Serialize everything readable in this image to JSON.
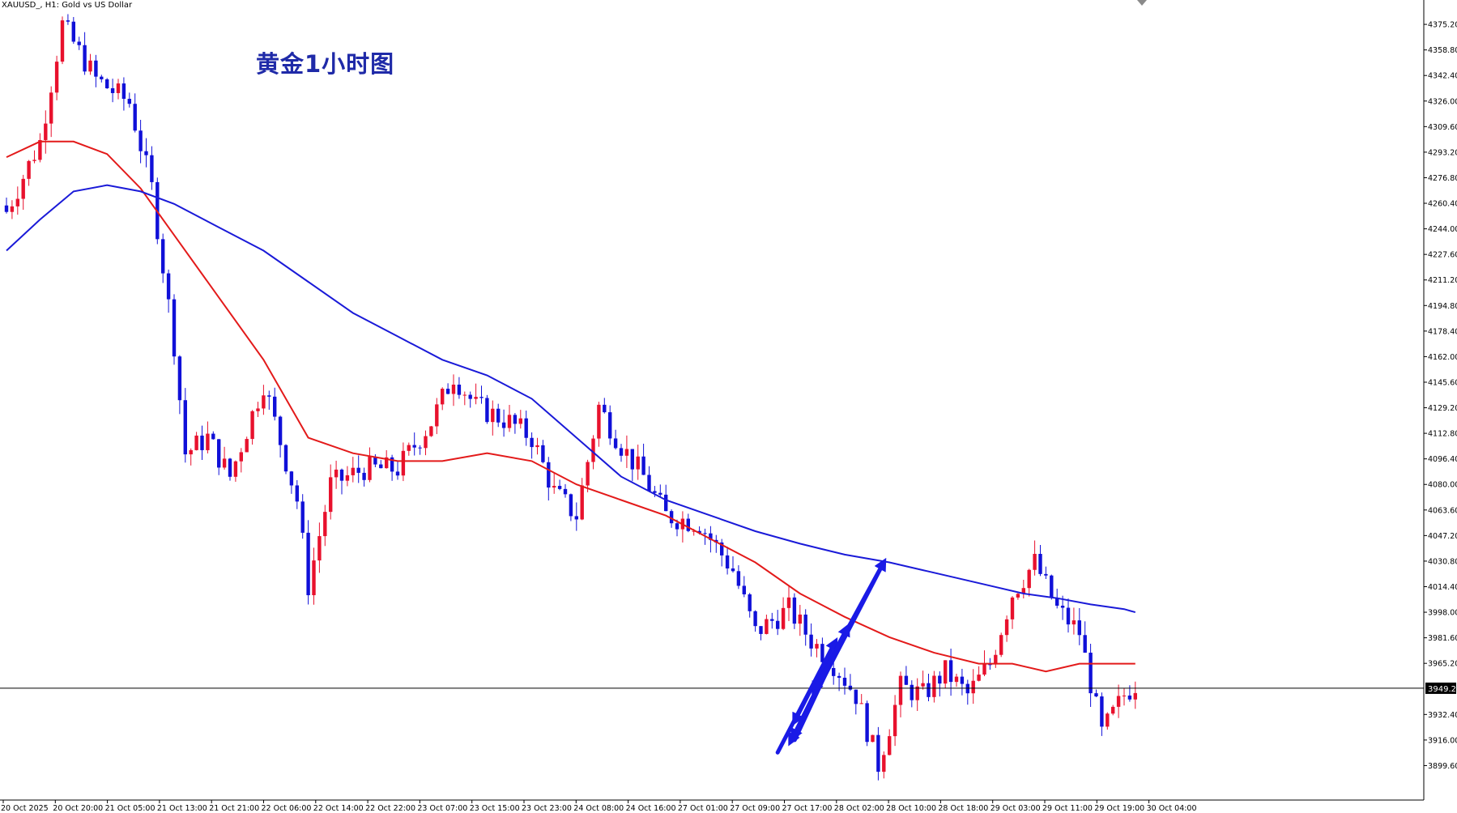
{
  "header": {
    "symbol": "XAUUSD_, H1:",
    "description": "Gold vs US Dollar"
  },
  "annotation": {
    "title": "黄金1小时图"
  },
  "colors": {
    "background": "#ffffff",
    "bull_candle": "#e8112d",
    "bear_candle": "#1010d8",
    "ma_fast": "#e31a1a",
    "ma_slow": "#1a1ad8",
    "annotation_arrows": "#1a1ae6",
    "axis": "#000000"
  },
  "chart_data": {
    "type": "candlestick",
    "title": "黄金1小时图",
    "ylim": [
      3883,
      4392
    ],
    "y_ticks": [
      "4375.20",
      "4358.80",
      "4342.40",
      "4326.00",
      "4309.60",
      "4293.20",
      "4276.80",
      "4260.40",
      "4244.00",
      "4227.60",
      "4211.20",
      "4194.80",
      "4178.40",
      "4162.00",
      "4145.60",
      "4129.20",
      "4112.80",
      "4096.40",
      "4080.00",
      "4063.60",
      "4047.20",
      "4030.80",
      "4014.40",
      "3998.00",
      "3981.60",
      "3965.20",
      "3932.40",
      "3916.00",
      "3899.60"
    ],
    "x_ticks": [
      "20 Oct 2025",
      "20 Oct 20:00",
      "21 Oct 05:00",
      "21 Oct 13:00",
      "21 Oct 21:00",
      "22 Oct 06:00",
      "22 Oct 14:00",
      "22 Oct 22:00",
      "23 Oct 07:00",
      "23 Oct 15:00",
      "23 Oct 23:00",
      "24 Oct 08:00",
      "24 Oct 16:00",
      "27 Oct 01:00",
      "27 Oct 09:00",
      "27 Oct 17:00",
      "28 Oct 02:00",
      "28 Oct 10:00",
      "28 Oct 18:00",
      "29 Oct 03:00",
      "29 Oct 11:00",
      "29 Oct 19:00",
      "30 Oct 04:00"
    ],
    "current_price": "3949.23",
    "close_path": [
      [
        0,
        4255
      ],
      [
        6,
        4300
      ],
      [
        10,
        4375
      ],
      [
        16,
        4340
      ],
      [
        22,
        4325
      ],
      [
        26,
        4270
      ],
      [
        30,
        4170
      ],
      [
        32,
        4100
      ],
      [
        36,
        4110
      ],
      [
        40,
        4085
      ],
      [
        46,
        4145
      ],
      [
        52,
        4070
      ],
      [
        54,
        4015
      ],
      [
        58,
        4080
      ],
      [
        64,
        4090
      ],
      [
        70,
        4090
      ],
      [
        76,
        4120
      ],
      [
        80,
        4150
      ],
      [
        84,
        4130
      ],
      [
        90,
        4120
      ],
      [
        94,
        4110
      ],
      [
        98,
        4075
      ],
      [
        102,
        4060
      ],
      [
        106,
        4130
      ],
      [
        110,
        4105
      ],
      [
        114,
        4085
      ],
      [
        118,
        4060
      ],
      [
        124,
        4055
      ],
      [
        130,
        4025
      ],
      [
        134,
        3985
      ],
      [
        140,
        4000
      ],
      [
        144,
        3980
      ],
      [
        148,
        3965
      ],
      [
        152,
        3945
      ],
      [
        156,
        3900
      ],
      [
        160,
        3950
      ],
      [
        164,
        3945
      ],
      [
        168,
        3960
      ],
      [
        172,
        3945
      ],
      [
        176,
        3965
      ],
      [
        180,
        4010
      ],
      [
        184,
        4030
      ],
      [
        188,
        4000
      ],
      [
        192,
        3985
      ],
      [
        196,
        3920
      ],
      [
        200,
        3945
      ],
      [
        202,
        3952
      ]
    ],
    "series": [
      {
        "name": "",
        "type": "ma_fast",
        "points": [
          [
            0,
            4290
          ],
          [
            6,
            4300
          ],
          [
            12,
            4300
          ],
          [
            18,
            4292
          ],
          [
            24,
            4270
          ],
          [
            30,
            4240
          ],
          [
            38,
            4200
          ],
          [
            46,
            4160
          ],
          [
            54,
            4110
          ],
          [
            62,
            4100
          ],
          [
            70,
            4095
          ],
          [
            78,
            4095
          ],
          [
            86,
            4100
          ],
          [
            94,
            4095
          ],
          [
            102,
            4080
          ],
          [
            110,
            4070
          ],
          [
            118,
            4060
          ],
          [
            126,
            4045
          ],
          [
            134,
            4030
          ],
          [
            142,
            4010
          ],
          [
            150,
            3995
          ],
          [
            158,
            3982
          ],
          [
            166,
            3972
          ],
          [
            174,
            3965
          ],
          [
            180,
            3965
          ],
          [
            186,
            3960
          ],
          [
            192,
            3965
          ],
          [
            198,
            3965
          ],
          [
            202,
            3965
          ]
        ]
      },
      {
        "name": "",
        "type": "ma_slow",
        "points": [
          [
            0,
            4230
          ],
          [
            6,
            4250
          ],
          [
            12,
            4268
          ],
          [
            18,
            4272
          ],
          [
            24,
            4268
          ],
          [
            30,
            4260
          ],
          [
            38,
            4245
          ],
          [
            46,
            4230
          ],
          [
            54,
            4210
          ],
          [
            62,
            4190
          ],
          [
            70,
            4175
          ],
          [
            78,
            4160
          ],
          [
            86,
            4150
          ],
          [
            94,
            4135
          ],
          [
            102,
            4110
          ],
          [
            110,
            4085
          ],
          [
            118,
            4070
          ],
          [
            126,
            4060
          ],
          [
            134,
            4050
          ],
          [
            142,
            4042
          ],
          [
            150,
            4035
          ],
          [
            158,
            4030
          ],
          [
            164,
            4025
          ],
          [
            170,
            4020
          ],
          [
            176,
            4015
          ],
          [
            182,
            4010
          ],
          [
            188,
            4007
          ],
          [
            194,
            4003
          ],
          [
            200,
            4000
          ],
          [
            202,
            3998
          ]
        ]
      }
    ],
    "arrows": [
      {
        "kind": "up",
        "from": [
          3899,
          3908
        ],
        "to": [
          3970,
          3979
        ]
      },
      {
        "kind": "down",
        "from": [
          3970,
          3979
        ],
        "to": [
          3920,
          3928
        ]
      },
      {
        "kind": "up",
        "from": [
          3920,
          3916
        ],
        "to": [
          3985,
          3988
        ]
      },
      {
        "kind": "down",
        "from": [
          3985,
          3988
        ],
        "to": [
          3944,
          3948
        ]
      },
      {
        "kind": "up",
        "from": [
          3944,
          3948
        ],
        "to": [
          4030,
          4030
        ]
      },
      {
        "kind": "down",
        "from": [
          4030,
          4030
        ],
        "to": [
          3918,
          3918
        ]
      },
      {
        "kind": "up",
        "from": [
          3918,
          3916
        ],
        "to": [
          3985,
          3988
        ]
      },
      {
        "kind": "down",
        "from": [
          3985,
          3988
        ],
        "to": [
          3915,
          3915
        ]
      }
    ]
  }
}
